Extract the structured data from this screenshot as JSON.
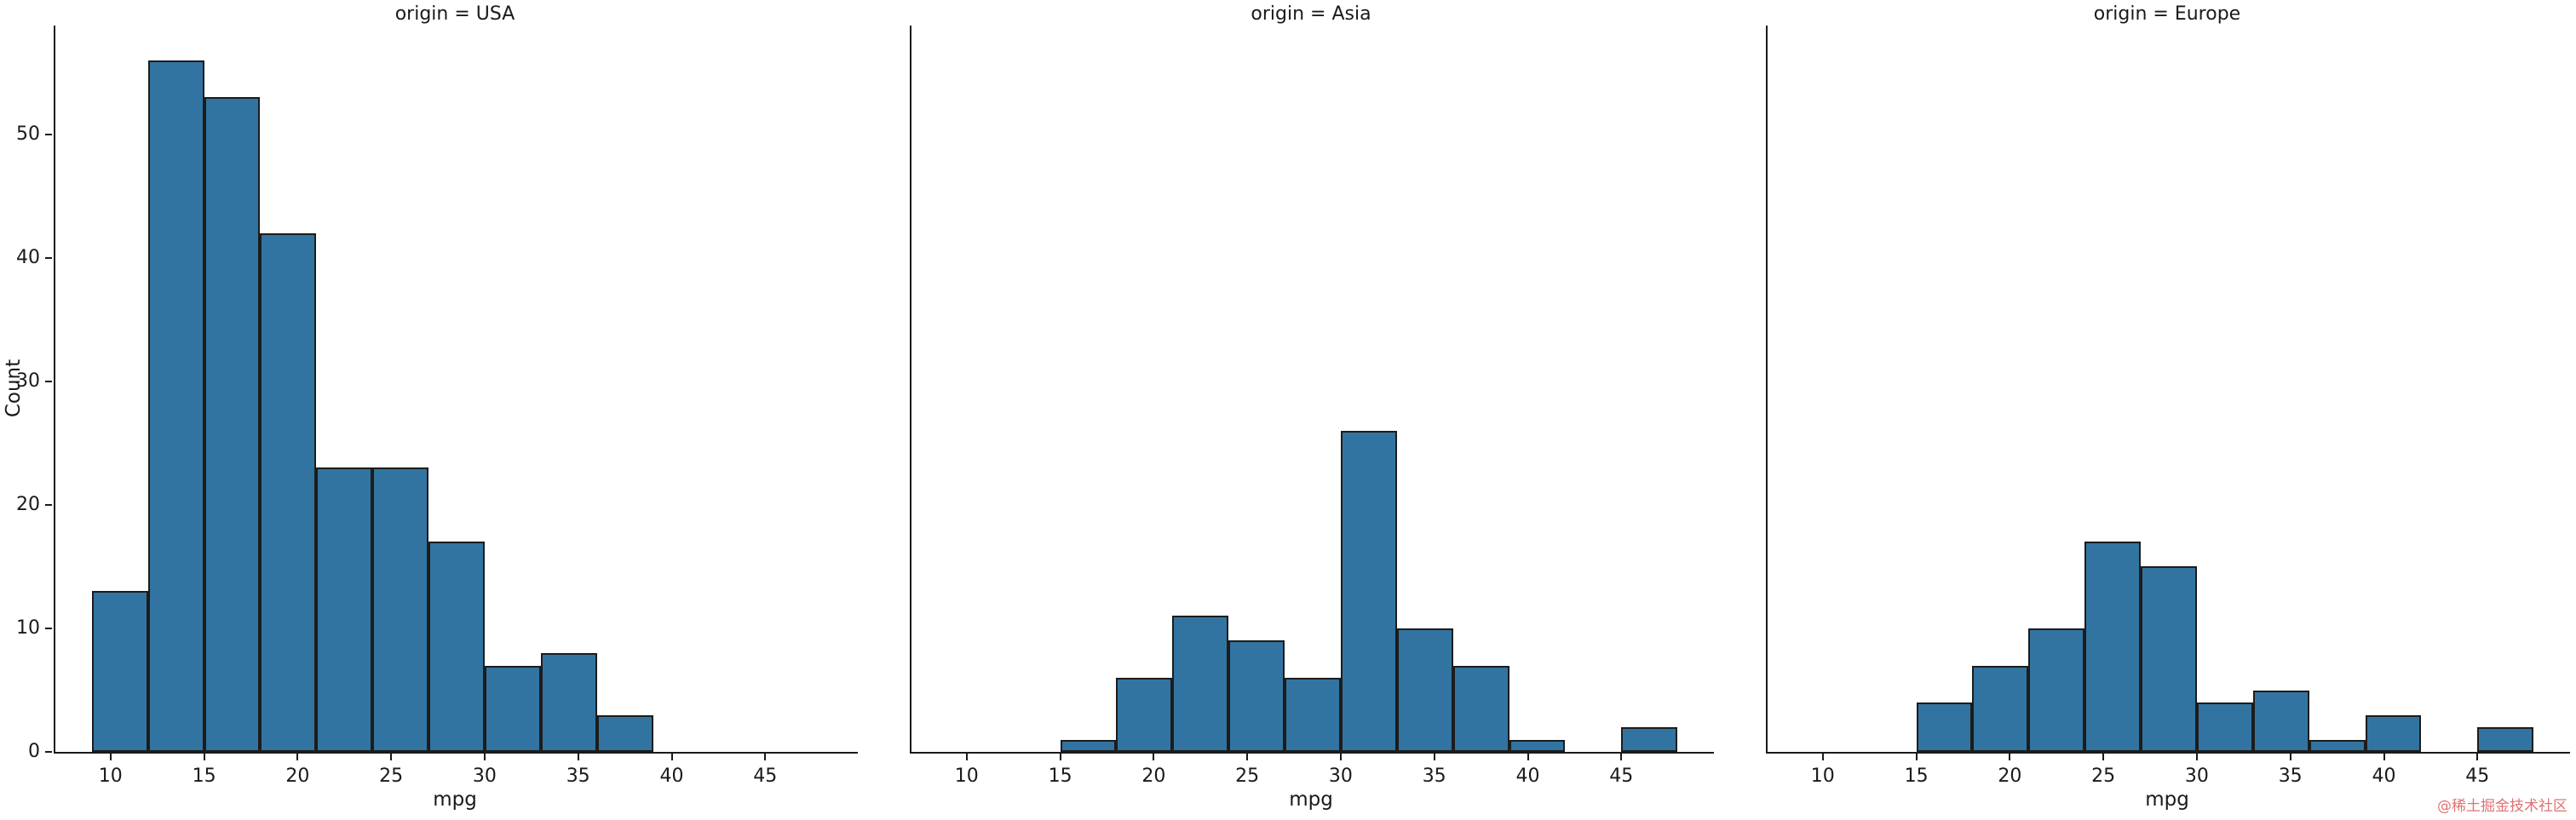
{
  "figure": {
    "background": "#ffffff",
    "watermark": "@稀土掘金技术社区",
    "watermark_color": "#e07273"
  },
  "chart_data": [
    {
      "type": "bar",
      "subtype": "histogram",
      "title": "origin = USA",
      "xlabel": "mpg",
      "ylabel": "Count",
      "show_ytick_labels": true,
      "bin_edges": [
        9,
        12,
        15,
        18,
        21,
        24,
        27,
        30,
        33,
        36,
        39,
        42,
        45,
        48
      ],
      "counts": [
        13,
        56,
        53,
        42,
        23,
        23,
        17,
        7,
        8,
        3,
        0,
        0,
        0
      ],
      "xlim": [
        7.05,
        49.95
      ],
      "ylim": [
        0,
        58.8
      ],
      "xticks": [
        10,
        15,
        20,
        25,
        30,
        35,
        40,
        45
      ],
      "yticks": [
        0,
        10,
        20,
        30,
        40,
        50
      ],
      "grid": false,
      "bar_color": "#3274a1",
      "bar_edge_color": "#1c1c1c"
    },
    {
      "type": "bar",
      "subtype": "histogram",
      "title": "origin = Asia",
      "xlabel": "mpg",
      "show_ytick_labels": false,
      "bin_edges": [
        9,
        12,
        15,
        18,
        21,
        24,
        27,
        30,
        33,
        36,
        39,
        42,
        45,
        48
      ],
      "counts": [
        0,
        0,
        1,
        6,
        11,
        9,
        6,
        26,
        10,
        7,
        1,
        0,
        2
      ],
      "xlim": [
        7.05,
        49.95
      ],
      "ylim": [
        0,
        58.8
      ],
      "xticks": [
        10,
        15,
        20,
        25,
        30,
        35,
        40,
        45
      ],
      "yticks": [
        0,
        10,
        20,
        30,
        40,
        50
      ],
      "grid": false,
      "bar_color": "#3274a1",
      "bar_edge_color": "#1c1c1c"
    },
    {
      "type": "bar",
      "subtype": "histogram",
      "title": "origin = Europe",
      "xlabel": "mpg",
      "show_ytick_labels": false,
      "bin_edges": [
        9,
        12,
        15,
        18,
        21,
        24,
        27,
        30,
        33,
        36,
        39,
        42,
        45,
        48
      ],
      "counts": [
        0,
        0,
        4,
        7,
        10,
        17,
        15,
        4,
        5,
        1,
        3,
        0,
        2
      ],
      "xlim": [
        7.05,
        49.95
      ],
      "ylim": [
        0,
        58.8
      ],
      "xticks": [
        10,
        15,
        20,
        25,
        30,
        35,
        40,
        45
      ],
      "yticks": [
        0,
        10,
        20,
        30,
        40,
        50
      ],
      "grid": false,
      "bar_color": "#3274a1",
      "bar_edge_color": "#1c1c1c"
    }
  ]
}
